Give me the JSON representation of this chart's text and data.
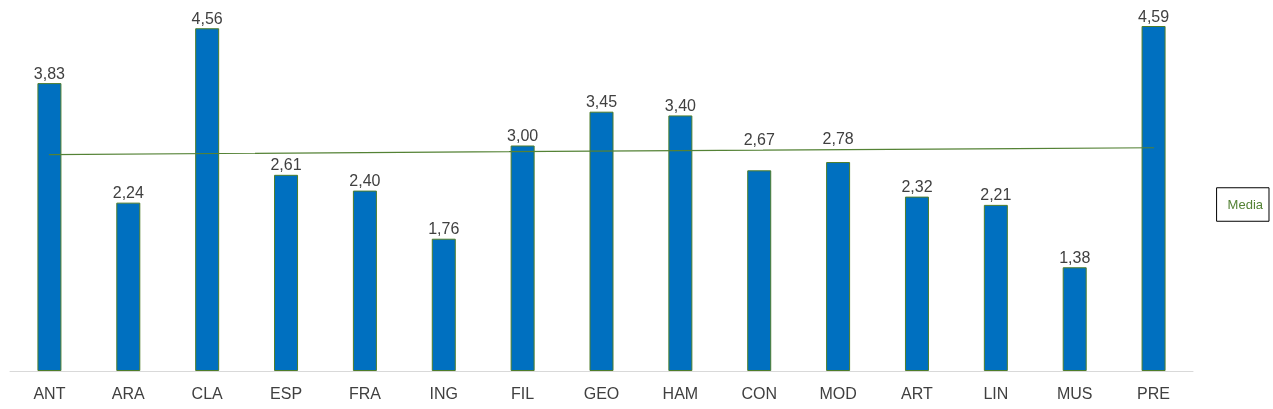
{
  "chart_data": {
    "type": "bar",
    "categories": [
      "ANT",
      "ARA",
      "CLA",
      "ESP",
      "FRA",
      "ING",
      "FIL",
      "GEO",
      "HAM",
      "CON",
      "MOD",
      "ART",
      "LIN",
      "MUS",
      "PRE"
    ],
    "series": [
      {
        "color": "#0070c0",
        "values": [
          3.83,
          2.24,
          4.56,
          2.61,
          2.4,
          1.76,
          3.0,
          3.45,
          3.4,
          2.67,
          2.78,
          2.32,
          2.21,
          1.38,
          4.59
        ],
        "value_labels": [
          "3,83",
          "2,24",
          "4,56",
          "2,61",
          "2,40",
          "1,76",
          "3,00",
          "3,45",
          "3,40",
          "2,67",
          "2,78",
          "2,32",
          "2,21",
          "1,38",
          "4,59"
        ]
      },
      {
        "type": "line",
        "name": "Media",
        "color": "#548235",
        "x": [
          "ANT",
          "PRE"
        ],
        "values": [
          2.88,
          2.97
        ]
      }
    ],
    "legend": "right",
    "marker": "none",
    "line_style": "solid"
  }
}
